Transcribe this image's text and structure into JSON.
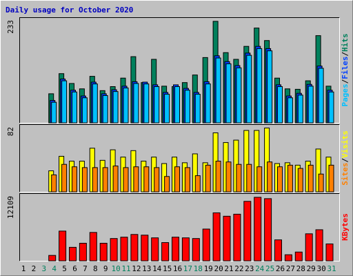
{
  "chart_data": [
    {
      "type": "bar",
      "title": "Daily usage for October 2020",
      "ylim": [
        0,
        233
      ],
      "yticks": [
        233
      ],
      "legend_separator": "/",
      "series": [
        {
          "name": "Hits",
          "color": "#00805c",
          "values": [
            null,
            null,
            null,
            65,
            110,
            88,
            76,
            104,
            72,
            81,
            100,
            148,
            90,
            142,
            82,
            81,
            90,
            107,
            146,
            227,
            157,
            142,
            171,
            212,
            184,
            100,
            76,
            75,
            94,
            195,
            82
          ]
        },
        {
          "name": "Files",
          "color": "#0040ff",
          "values": [
            null,
            null,
            null,
            50,
            98,
            73,
            60,
            91,
            65,
            74,
            82,
            92,
            91,
            85,
            68,
            85,
            77,
            68,
            92,
            150,
            137,
            128,
            156,
            171,
            166,
            85,
            60,
            66,
            86,
            127,
            73
          ]
        },
        {
          "name": "Pages",
          "color": "#00c0ff",
          "values": [
            null,
            null,
            null,
            46,
            94,
            69,
            56,
            87,
            61,
            70,
            78,
            88,
            87,
            81,
            64,
            81,
            73,
            64,
            87,
            145,
            132,
            123,
            151,
            166,
            161,
            81,
            56,
            62,
            82,
            122,
            69
          ]
        }
      ]
    },
    {
      "type": "bar",
      "ylim": [
        0,
        82
      ],
      "yticks": [
        82
      ],
      "legend_separator": "/",
      "series": [
        {
          "name": "Visits",
          "color": "#ffff00",
          "values": [
            null,
            null,
            null,
            26,
            44,
            38,
            38,
            54,
            39,
            52,
            43,
            51,
            38,
            43,
            35,
            43,
            36,
            47,
            36,
            73,
            61,
            64,
            76,
            76,
            79,
            35,
            36,
            33,
            38,
            53,
            43
          ]
        },
        {
          "name": "Sites",
          "color": "#ff8000",
          "values": [
            null,
            null,
            null,
            21,
            34,
            31,
            30,
            30,
            30,
            32,
            30,
            31,
            31,
            30,
            19,
            31,
            30,
            20,
            33,
            38,
            37,
            34,
            34,
            31,
            37,
            31,
            33,
            29,
            33,
            22,
            33
          ]
        }
      ]
    },
    {
      "type": "bar",
      "ylim": [
        0,
        12109
      ],
      "yticks": [
        12109
      ],
      "series": [
        {
          "name": "KBytes",
          "color": "#ff0000",
          "values": [
            null,
            null,
            null,
            990,
            5437,
            2471,
            3213,
            5190,
            3213,
            4078,
            4325,
            4819,
            4695,
            4202,
            3336,
            4325,
            4202,
            4078,
            5807,
            8773,
            8155,
            8526,
            10873,
            11615,
            11368,
            3831,
            1112,
            1606,
            4943,
            5684,
            3089
          ]
        }
      ],
      "categories": [
        "1",
        "2",
        "3",
        "4",
        "5",
        "6",
        "7",
        "8",
        "9",
        "10",
        "11",
        "12",
        "13",
        "14",
        "15",
        "16",
        "17",
        "18",
        "19",
        "20",
        "21",
        "22",
        "23",
        "24",
        "25",
        "26",
        "27",
        "28",
        "29",
        "30",
        "31"
      ],
      "category_colors": [
        "#000000",
        "#000000",
        "#00805c",
        "#00805c",
        "#000000",
        "#000000",
        "#000000",
        "#000000",
        "#000000",
        "#00805c",
        "#00805c",
        "#000000",
        "#000000",
        "#000000",
        "#000000",
        "#000000",
        "#00805c",
        "#00805c",
        "#000000",
        "#000000",
        "#000000",
        "#000000",
        "#000000",
        "#00805c",
        "#00805c",
        "#000000",
        "#000000",
        "#000000",
        "#000000",
        "#000000",
        "#00805c"
      ]
    }
  ]
}
